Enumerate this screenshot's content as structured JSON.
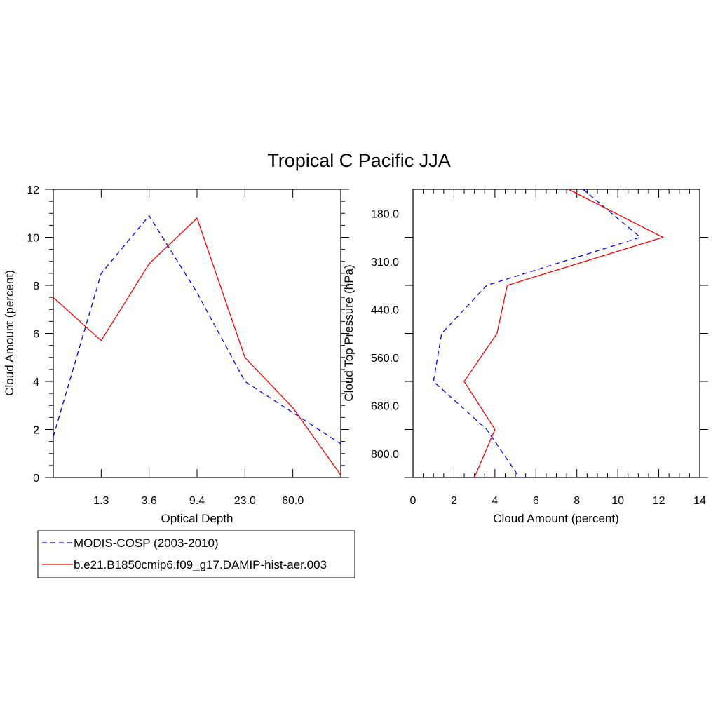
{
  "title": "Tropical C Pacific JJA",
  "legend": {
    "position": "bottom-left",
    "entries": [
      {
        "label": "MODIS-COSP (2003-2010)",
        "color": "#0000ff",
        "dash": "dashed"
      },
      {
        "label": "b.e21.B1850cmip6.f09_g17.DAMIP-hist-aer.003",
        "color": "#ff0000",
        "dash": "solid"
      }
    ]
  },
  "chart_data": [
    {
      "type": "line",
      "xlabel": "Optical Depth",
      "ylabel": "Cloud Amount (percent)",
      "x_tick_labels": [
        "1.3",
        "3.6",
        "9.4",
        "23.0",
        "60.0"
      ],
      "ylim": [
        0,
        12
      ],
      "y_ticks": [
        0,
        2,
        4,
        6,
        8,
        10,
        12
      ],
      "grid": false,
      "series": [
        {
          "name": "MODIS-COSP (2003-2010)",
          "color": "#0000ff",
          "dash": "dashed",
          "x": [
            0,
            1,
            2,
            3,
            4,
            5,
            6
          ],
          "values": [
            1.7,
            8.5,
            10.9,
            7.7,
            4.0,
            2.7,
            1.4
          ]
        },
        {
          "name": "b.e21.B1850cmip6.f09_g17.DAMIP-hist-aer.003",
          "color": "#ff0000",
          "dash": "solid",
          "x": [
            0,
            1,
            2,
            3,
            4,
            5,
            6
          ],
          "values": [
            7.5,
            5.7,
            8.9,
            10.8,
            5.0,
            2.9,
            0.1
          ]
        }
      ]
    },
    {
      "type": "line",
      "xlabel": "Cloud Amount (percent)",
      "ylabel": "Cloud Top Pressure (hPa)",
      "y_tick_labels": [
        "180.0",
        "310.0",
        "440.0",
        "560.0",
        "680.0",
        "800.0"
      ],
      "xlim": [
        0,
        14
      ],
      "x_ticks": [
        0,
        2,
        4,
        6,
        8,
        10,
        12,
        14
      ],
      "grid": false,
      "series": [
        {
          "name": "MODIS-COSP (2003-2010)",
          "color": "#0000ff",
          "dash": "dashed",
          "level": [
            0,
            1,
            2,
            3,
            4,
            5,
            6
          ],
          "values": [
            8.3,
            11.1,
            3.6,
            1.4,
            1.0,
            3.6,
            5.2
          ]
        },
        {
          "name": "b.e21.B1850cmip6.f09_g17.DAMIP-hist-aer.003",
          "color": "#ff0000",
          "dash": "solid",
          "level": [
            0,
            1,
            2,
            3,
            4,
            5,
            6
          ],
          "values": [
            7.6,
            12.2,
            4.6,
            4.1,
            2.5,
            4.0,
            3.0
          ]
        }
      ]
    }
  ]
}
